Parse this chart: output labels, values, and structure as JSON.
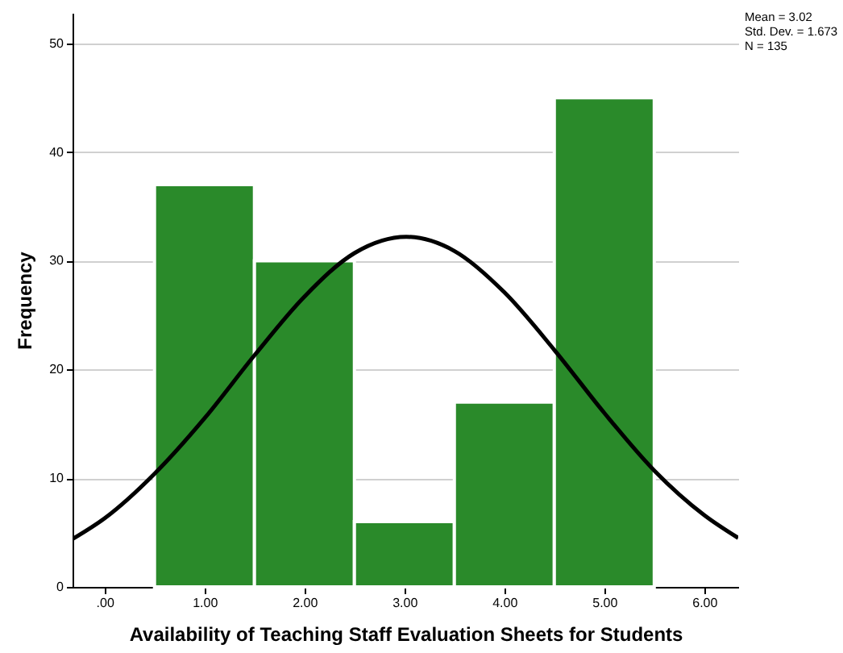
{
  "chart_data": {
    "type": "histogram",
    "xlabel": "Availability of Teaching Staff Evaluation Sheets for Students",
    "ylabel": "Frequency",
    "bins": [
      0.5,
      1.5,
      2.5,
      3.5,
      4.5,
      5.5
    ],
    "values": [
      37,
      30,
      6,
      17,
      45
    ],
    "color": "#2a8a2a",
    "series": [
      {
        "type": "line",
        "color": "#000000",
        "x": [
          -0.32,
          0,
          0.5,
          1,
          1.5,
          2,
          2.5,
          3.02,
          3.5,
          4,
          4.5,
          5,
          5.5,
          6,
          6.34
        ],
        "values": [
          4.4,
          6.3,
          10.4,
          15.5,
          21.3,
          26.7,
          30.7,
          32.2,
          30.9,
          27.1,
          21.8,
          16,
          10.7,
          6.6,
          4.5
        ]
      }
    ],
    "xlim": [
      -0.32,
      6.34
    ],
    "ylim": [
      0,
      52.8
    ],
    "xticks": [
      {
        "value": 0,
        "label": ".00"
      },
      {
        "value": 1,
        "label": "1.00"
      },
      {
        "value": 2,
        "label": "2.00"
      },
      {
        "value": 3,
        "label": "3.00"
      },
      {
        "value": 4,
        "label": "4.00"
      },
      {
        "value": 5,
        "label": "5.00"
      },
      {
        "value": 6,
        "label": "6.00"
      }
    ],
    "yticks": [
      0,
      10,
      20,
      30,
      40,
      50
    ],
    "grid": "y",
    "annotations": [
      "Mean = 3.02",
      "Std. Dev. = 1.673",
      "N = 135"
    ]
  }
}
